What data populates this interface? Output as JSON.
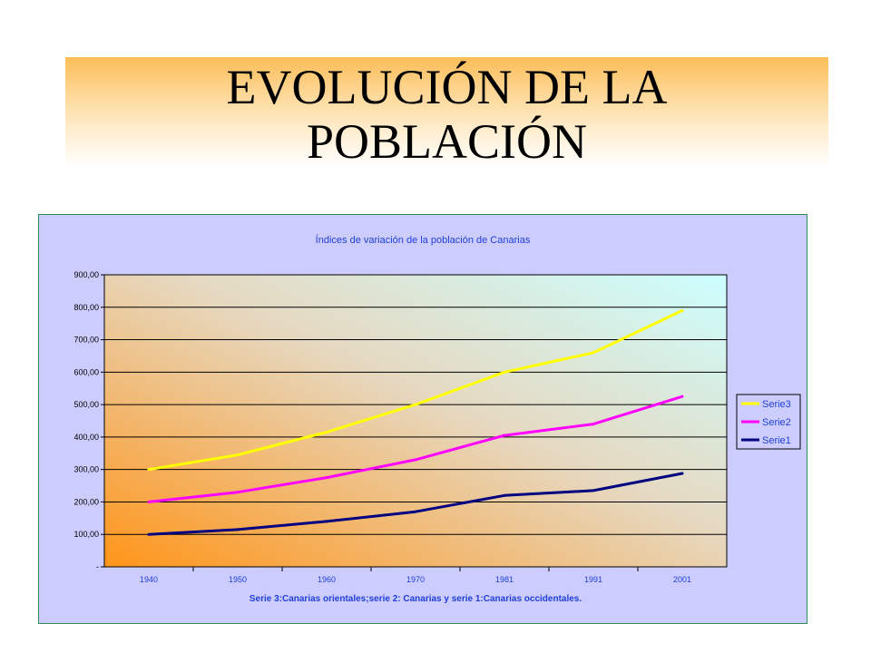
{
  "slide": {
    "title_line1": "EVOLUCIÓN DE LA",
    "title_line2": "POBLACIÓN"
  },
  "chart_data": {
    "type": "line",
    "title": "Índices de variación de la población de Canarias",
    "xlabel": "Serie 3:Canarias orientales;serie 2: Canarias y serie 1:Canarias occidentales.",
    "ylabel": "",
    "categories": [
      "1940",
      "1950",
      "1960",
      "1970",
      "1981",
      "1991",
      "2001"
    ],
    "ylim": [
      0,
      900
    ],
    "y_ticks": [
      {
        "value": 0,
        "label": "-"
      },
      {
        "value": 100,
        "label": "100,00"
      },
      {
        "value": 200,
        "label": "200,00"
      },
      {
        "value": 300,
        "label": "300,00"
      },
      {
        "value": 400,
        "label": "400,00"
      },
      {
        "value": 500,
        "label": "500,00"
      },
      {
        "value": 600,
        "label": "600,00"
      },
      {
        "value": 700,
        "label": "700,00"
      },
      {
        "value": 800,
        "label": "800,00"
      },
      {
        "value": 900,
        "label": "900,00"
      }
    ],
    "grid": true,
    "legend_position": "right",
    "series": [
      {
        "name": "Serie3",
        "color": "#ffff00",
        "values": [
          300,
          345,
          415,
          500,
          600,
          660,
          790
        ]
      },
      {
        "name": "Serie2",
        "color": "#ff00ff",
        "values": [
          200,
          230,
          275,
          330,
          405,
          440,
          525
        ]
      },
      {
        "name": "Serie1",
        "color": "#000080",
        "values": [
          100,
          115,
          140,
          170,
          220,
          235,
          288
        ]
      }
    ],
    "colors": {
      "frame_background": "#ccccff",
      "plot_gradient_start": "#ff9519",
      "plot_gradient_end": "#ccffff",
      "text_blue": "#1f3fd8"
    }
  }
}
